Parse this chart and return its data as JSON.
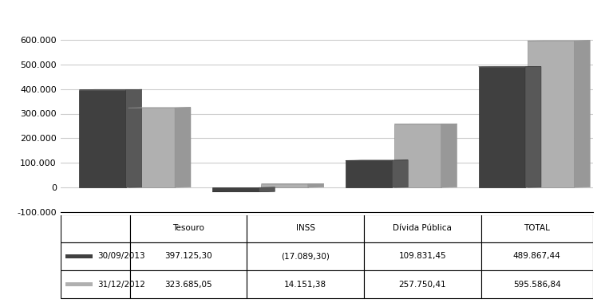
{
  "categories": [
    "Tesouro",
    "INSS",
    "Dívida Pública",
    "TOTAL"
  ],
  "series": [
    {
      "label": "30/09/2013",
      "values": [
        397125.3,
        -17089.3,
        109831.45,
        489867.44
      ],
      "color": "#404040",
      "edge_color": "#303030"
    },
    {
      "label": "31/12/2012",
      "values": [
        323685.05,
        14151.38,
        257750.41,
        595586.84
      ],
      "color": "#b0b0b0",
      "edge_color": "#909090"
    }
  ],
  "ylim": [
    -100000,
    700000
  ],
  "yticks": [
    -100000,
    0,
    100000,
    200000,
    300000,
    400000,
    500000,
    600000
  ],
  "ytick_labels": [
    "-100.000",
    "0",
    "100.000",
    "200.000",
    "300.000",
    "400.000",
    "500.000",
    "600.000"
  ],
  "table_data": [
    [
      "",
      "Tesouro",
      "INSS",
      "Dívida Pública",
      "TOTAL"
    ],
    [
      "30/09/2013",
      "397.125,30",
      "(17.089,30)",
      "109.831,45",
      "489.867,44"
    ],
    [
      "31/12/2012",
      "323.685,05",
      "14.151,38",
      "257.750,41",
      "595.586,84"
    ]
  ],
  "legend_colors": [
    "#404040",
    "#b0b0b0"
  ],
  "legend_labels": [
    "30/09/2013",
    "31/12/2012"
  ],
  "bar_width": 0.35,
  "background_color": "#ffffff",
  "grid_color": "#cccccc"
}
